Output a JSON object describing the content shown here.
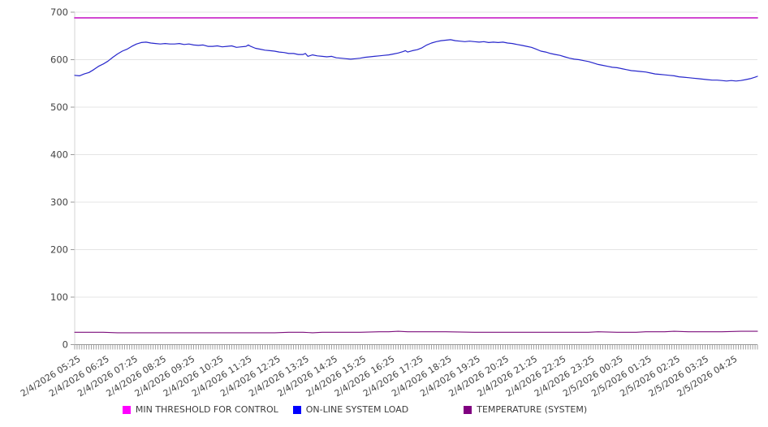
{
  "chart_data": {
    "type": "line",
    "title": "",
    "xlabel": "",
    "ylabel": "",
    "ylim": [
      0,
      700
    ],
    "y_ticks": [
      0,
      100,
      200,
      300,
      400,
      500,
      600,
      700
    ],
    "grid": "horizontal-only",
    "legend_position": "bottom",
    "x_range_minutes": 1435,
    "x_minor_tick_step_minutes": 5,
    "x_tick_step_minutes": 60,
    "x_tick_labels": [
      "2/4/2026 05:25",
      "2/4/2026 06:25",
      "2/4/2026 07:25",
      "2/4/2026 08:25",
      "2/4/2026 09:25",
      "2/4/2026 10:25",
      "2/4/2026 11:25",
      "2/4/2026 12:25",
      "2/4/2026 13:25",
      "2/4/2026 14:25",
      "2/4/2026 15:25",
      "2/4/2026 16:25",
      "2/4/2026 17:25",
      "2/4/2026 18:25",
      "2/4/2026 19:25",
      "2/4/2026 20:25",
      "2/4/2026 21:25",
      "2/4/2026 22:25",
      "2/4/2026 23:25",
      "2/5/2026 00:25",
      "2/5/2026 01:25",
      "2/5/2026 02:25",
      "2/5/2026 03:25",
      "2/5/2026 04:25"
    ],
    "series": [
      {
        "id": "min-threshold-for-control",
        "name": "MIN THRESHOLD FOR CONTROL",
        "color": "#CC2FCC",
        "legend_color": "#FF00FF",
        "stroke_width": 1.8,
        "points": [
          [
            0,
            688
          ],
          [
            1435,
            688
          ]
        ]
      },
      {
        "id": "on-line-system-load",
        "name": "ON-LINE SYSTEM LOAD",
        "color": "#2727CC",
        "legend_color": "#0000FF",
        "stroke_width": 1.2,
        "points": [
          [
            0,
            567
          ],
          [
            10,
            566
          ],
          [
            20,
            570
          ],
          [
            30,
            573
          ],
          [
            40,
            579
          ],
          [
            50,
            586
          ],
          [
            60,
            591
          ],
          [
            70,
            597
          ],
          [
            80,
            605
          ],
          [
            90,
            612
          ],
          [
            100,
            618
          ],
          [
            110,
            622
          ],
          [
            120,
            628
          ],
          [
            130,
            633
          ],
          [
            140,
            636
          ],
          [
            150,
            637
          ],
          [
            160,
            635
          ],
          [
            170,
            634
          ],
          [
            180,
            633
          ],
          [
            190,
            634
          ],
          [
            200,
            633
          ],
          [
            210,
            633
          ],
          [
            220,
            634
          ],
          [
            230,
            632
          ],
          [
            240,
            633
          ],
          [
            250,
            631
          ],
          [
            260,
            630
          ],
          [
            270,
            631
          ],
          [
            280,
            628
          ],
          [
            290,
            628
          ],
          [
            300,
            629
          ],
          [
            310,
            627
          ],
          [
            320,
            628
          ],
          [
            330,
            629
          ],
          [
            340,
            626
          ],
          [
            350,
            627
          ],
          [
            360,
            628
          ],
          [
            365,
            631
          ],
          [
            370,
            628
          ],
          [
            380,
            624
          ],
          [
            390,
            622
          ],
          [
            400,
            620
          ],
          [
            410,
            619
          ],
          [
            420,
            618
          ],
          [
            430,
            616
          ],
          [
            440,
            615
          ],
          [
            450,
            613
          ],
          [
            460,
            613
          ],
          [
            470,
            611
          ],
          [
            480,
            611
          ],
          [
            485,
            613
          ],
          [
            490,
            607
          ],
          [
            500,
            610
          ],
          [
            510,
            608
          ],
          [
            520,
            607
          ],
          [
            530,
            606
          ],
          [
            540,
            607
          ],
          [
            550,
            604
          ],
          [
            560,
            603
          ],
          [
            570,
            602
          ],
          [
            580,
            601
          ],
          [
            590,
            602
          ],
          [
            600,
            603
          ],
          [
            610,
            605
          ],
          [
            620,
            606
          ],
          [
            630,
            607
          ],
          [
            640,
            608
          ],
          [
            650,
            609
          ],
          [
            660,
            610
          ],
          [
            670,
            612
          ],
          [
            680,
            614
          ],
          [
            690,
            617
          ],
          [
            695,
            619
          ],
          [
            700,
            616
          ],
          [
            710,
            619
          ],
          [
            720,
            621
          ],
          [
            730,
            625
          ],
          [
            740,
            631
          ],
          [
            750,
            635
          ],
          [
            760,
            638
          ],
          [
            770,
            640
          ],
          [
            780,
            641
          ],
          [
            790,
            642
          ],
          [
            800,
            640
          ],
          [
            810,
            639
          ],
          [
            820,
            638
          ],
          [
            830,
            639
          ],
          [
            840,
            638
          ],
          [
            850,
            637
          ],
          [
            860,
            638
          ],
          [
            870,
            636
          ],
          [
            880,
            637
          ],
          [
            890,
            636
          ],
          [
            900,
            637
          ],
          [
            910,
            635
          ],
          [
            920,
            634
          ],
          [
            930,
            632
          ],
          [
            940,
            630
          ],
          [
            950,
            628
          ],
          [
            960,
            626
          ],
          [
            970,
            622
          ],
          [
            980,
            618
          ],
          [
            990,
            616
          ],
          [
            1000,
            613
          ],
          [
            1010,
            611
          ],
          [
            1020,
            609
          ],
          [
            1030,
            606
          ],
          [
            1040,
            603
          ],
          [
            1050,
            601
          ],
          [
            1060,
            600
          ],
          [
            1070,
            598
          ],
          [
            1080,
            596
          ],
          [
            1090,
            593
          ],
          [
            1100,
            590
          ],
          [
            1110,
            588
          ],
          [
            1120,
            586
          ],
          [
            1130,
            584
          ],
          [
            1140,
            583
          ],
          [
            1150,
            581
          ],
          [
            1160,
            579
          ],
          [
            1170,
            577
          ],
          [
            1180,
            576
          ],
          [
            1190,
            575
          ],
          [
            1200,
            574
          ],
          [
            1210,
            572
          ],
          [
            1220,
            570
          ],
          [
            1230,
            569
          ],
          [
            1240,
            568
          ],
          [
            1250,
            567
          ],
          [
            1260,
            566
          ],
          [
            1270,
            564
          ],
          [
            1280,
            563
          ],
          [
            1290,
            562
          ],
          [
            1300,
            561
          ],
          [
            1310,
            560
          ],
          [
            1320,
            559
          ],
          [
            1330,
            558
          ],
          [
            1340,
            557
          ],
          [
            1350,
            557
          ],
          [
            1360,
            556
          ],
          [
            1370,
            555
          ],
          [
            1380,
            556
          ],
          [
            1390,
            555
          ],
          [
            1400,
            556
          ],
          [
            1410,
            558
          ],
          [
            1420,
            560
          ],
          [
            1430,
            563
          ],
          [
            1435,
            565
          ]
        ]
      },
      {
        "id": "temperature-system",
        "name": "TEMPERATURE (SYSTEM)",
        "color": "#7C0E7C",
        "legend_color": "#800080",
        "stroke_width": 1.1,
        "points": [
          [
            0,
            26
          ],
          [
            60,
            26
          ],
          [
            90,
            25
          ],
          [
            120,
            25
          ],
          [
            180,
            25
          ],
          [
            240,
            25
          ],
          [
            300,
            25
          ],
          [
            330,
            25
          ],
          [
            360,
            25
          ],
          [
            420,
            25
          ],
          [
            450,
            26
          ],
          [
            480,
            26
          ],
          [
            500,
            25
          ],
          [
            520,
            26
          ],
          [
            560,
            26
          ],
          [
            600,
            26
          ],
          [
            640,
            27
          ],
          [
            660,
            27
          ],
          [
            680,
            28
          ],
          [
            700,
            27
          ],
          [
            720,
            27
          ],
          [
            780,
            27
          ],
          [
            840,
            26
          ],
          [
            900,
            26
          ],
          [
            960,
            26
          ],
          [
            1020,
            26
          ],
          [
            1080,
            26
          ],
          [
            1100,
            27
          ],
          [
            1140,
            26
          ],
          [
            1180,
            26
          ],
          [
            1200,
            27
          ],
          [
            1240,
            27
          ],
          [
            1260,
            28
          ],
          [
            1290,
            27
          ],
          [
            1320,
            27
          ],
          [
            1360,
            27
          ],
          [
            1400,
            28
          ],
          [
            1435,
            28
          ]
        ]
      }
    ],
    "colors": {
      "gridline": "#e4e4e4",
      "x_axis_line": "#999999",
      "y_axis_line": "#d5d5d5",
      "tick": "#999999",
      "axis_text": "#444444"
    }
  }
}
